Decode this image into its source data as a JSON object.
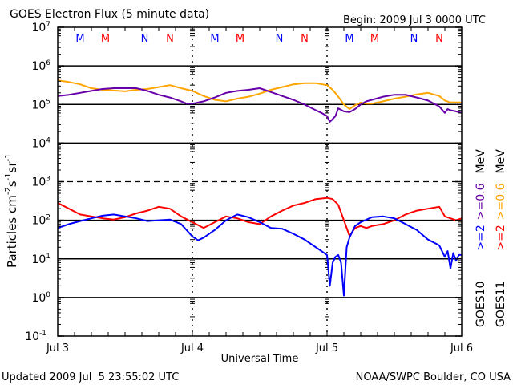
{
  "chart_data": {
    "type": "line",
    "title": "GOES Electron Flux (5 minute data)",
    "begin_label": "Begin: 2009 Jul 3 0000 UTC",
    "xlabel": "Universal Time",
    "ylabel": "Particles cm",
    "ylabel_parts": [
      "Particles cm",
      "-2",
      "s",
      "-1",
      "sr",
      "-1"
    ],
    "yscale": "log",
    "ylim_exp": [
      -1,
      7
    ],
    "xlim_hours": [
      0,
      72
    ],
    "y_ticks": [
      {
        "exp": 7,
        "label": "10",
        "sup": "7"
      },
      {
        "exp": 6,
        "label": "10",
        "sup": "6"
      },
      {
        "exp": 5,
        "label": "10",
        "sup": "5"
      },
      {
        "exp": 4,
        "label": "10",
        "sup": "4"
      },
      {
        "exp": 3,
        "label": "10",
        "sup": "3"
      },
      {
        "exp": 2,
        "label": "10",
        "sup": "2"
      },
      {
        "exp": 1,
        "label": "10",
        "sup": "1"
      },
      {
        "exp": 0,
        "label": "10",
        "sup": "0"
      },
      {
        "exp": -1,
        "label": "10",
        "sup": "-1"
      }
    ],
    "x_ticks": [
      {
        "hour": 0,
        "label": "Jul 3"
      },
      {
        "hour": 24,
        "label": "Jul 4"
      },
      {
        "hour": 48,
        "label": "Jul 5"
      },
      {
        "hour": 72,
        "label": "Jul 6"
      }
    ],
    "grid_solid_exp": [
      6,
      5,
      4,
      2,
      1,
      0
    ],
    "grid_dashed_exp": [
      3
    ],
    "day_markers": [
      24,
      48
    ],
    "mn_markers": [
      {
        "hour": 4.0,
        "label": "M",
        "color": "#0000ff"
      },
      {
        "hour": 8.5,
        "label": "M",
        "color": "#ff0000"
      },
      {
        "hour": 15.5,
        "label": "N",
        "color": "#0000ff"
      },
      {
        "hour": 20.0,
        "label": "N",
        "color": "#ff0000"
      },
      {
        "hour": 28.0,
        "label": "M",
        "color": "#0000ff"
      },
      {
        "hour": 32.5,
        "label": "M",
        "color": "#ff0000"
      },
      {
        "hour": 39.5,
        "label": "N",
        "color": "#0000ff"
      },
      {
        "hour": 44.0,
        "label": "N",
        "color": "#ff0000"
      },
      {
        "hour": 52.0,
        "label": "M",
        "color": "#0000ff"
      },
      {
        "hour": 56.5,
        "label": "M",
        "color": "#ff0000"
      },
      {
        "hour": 63.5,
        "label": "N",
        "color": "#0000ff"
      },
      {
        "hour": 68.0,
        "label": "N",
        "color": "#ff0000"
      }
    ],
    "legend": {
      "placement": "right",
      "columns": [
        {
          "satellite": "GOES10",
          "entries": [
            {
              "label": ">=2",
              "color": "#0000ff"
            },
            {
              "label": ">=0.6",
              "color": "#6600aa"
            },
            {
              "label": "MeV",
              "color": "#000000"
            }
          ]
        },
        {
          "satellite": "GOES11",
          "entries": [
            {
              "label": ">=2",
              "color": "#ff0000"
            },
            {
              "label": ">=0.6",
              "color": "#ffa500"
            },
            {
              "label": "MeV",
              "color": "#000000"
            }
          ]
        }
      ]
    },
    "series": [
      {
        "name": "GOES11 >=0.6 MeV",
        "color": "#ffa500",
        "x": [
          0,
          2,
          4,
          6,
          8,
          10,
          12,
          14,
          16,
          18,
          20,
          22,
          24,
          26,
          28,
          30,
          32,
          34,
          36,
          38,
          40,
          42,
          44,
          46,
          48,
          49,
          50,
          51,
          52,
          53,
          54,
          55,
          56,
          58,
          60,
          62,
          64,
          66,
          68,
          69,
          70,
          71,
          72
        ],
        "y_exp": [
          5.62,
          5.58,
          5.52,
          5.42,
          5.38,
          5.36,
          5.34,
          5.38,
          5.4,
          5.45,
          5.5,
          5.42,
          5.35,
          5.22,
          5.12,
          5.08,
          5.15,
          5.2,
          5.28,
          5.38,
          5.45,
          5.52,
          5.55,
          5.55,
          5.5,
          5.38,
          5.2,
          5.0,
          4.88,
          4.98,
          5.05,
          5.02,
          5.02,
          5.08,
          5.15,
          5.2,
          5.26,
          5.3,
          5.22,
          5.1,
          5.05,
          5.05,
          5.05
        ]
      },
      {
        "name": "GOES10 >=0.6 MeV",
        "color": "#6600aa",
        "x": [
          0,
          2,
          4,
          6,
          8,
          10,
          12,
          14,
          16,
          18,
          20,
          22,
          23,
          24,
          26,
          28,
          30,
          32,
          34,
          36,
          38,
          40,
          42,
          44,
          46,
          47,
          48,
          48.5,
          49,
          49.5,
          50,
          51,
          52,
          53,
          54,
          55,
          56,
          58,
          60,
          62,
          64,
          66,
          68,
          69,
          69.5,
          70,
          71,
          72
        ],
        "y_exp": [
          5.22,
          5.25,
          5.3,
          5.35,
          5.4,
          5.42,
          5.42,
          5.42,
          5.35,
          5.25,
          5.18,
          5.08,
          5.02,
          5.02,
          5.08,
          5.18,
          5.3,
          5.35,
          5.38,
          5.42,
          5.32,
          5.22,
          5.12,
          5.0,
          4.85,
          4.78,
          4.7,
          4.55,
          4.62,
          4.7,
          4.9,
          4.82,
          4.8,
          4.88,
          5.0,
          5.08,
          5.12,
          5.2,
          5.25,
          5.25,
          5.18,
          5.1,
          4.95,
          4.78,
          4.88,
          4.85,
          4.82,
          4.78
        ]
      },
      {
        "name": "GOES11 >=2 MeV",
        "color": "#ff0000",
        "x": [
          0,
          2,
          4,
          6,
          8,
          10,
          12,
          14,
          16,
          18,
          20,
          22,
          24,
          26,
          28,
          30,
          32,
          34,
          36,
          38,
          40,
          42,
          44,
          46,
          48,
          49,
          50,
          51,
          52,
          53,
          54,
          55,
          56,
          58,
          60,
          62,
          64,
          66,
          68,
          69,
          70,
          71,
          72
        ],
        "y_exp": [
          2.45,
          2.3,
          2.15,
          2.1,
          2.05,
          2.02,
          2.08,
          2.18,
          2.25,
          2.35,
          2.3,
          2.1,
          1.95,
          1.8,
          1.95,
          2.1,
          2.05,
          1.95,
          1.9,
          2.1,
          2.25,
          2.38,
          2.45,
          2.55,
          2.58,
          2.55,
          2.4,
          2.0,
          1.6,
          1.8,
          1.85,
          1.8,
          1.85,
          1.9,
          2.0,
          2.15,
          2.25,
          2.3,
          2.35,
          2.1,
          2.05,
          2.0,
          2.05
        ]
      },
      {
        "name": "GOES10 >=2 MeV",
        "color": "#0000ff",
        "x": [
          0,
          2,
          4,
          6,
          8,
          10,
          12,
          14,
          16,
          18,
          20,
          22,
          24,
          25,
          26,
          28,
          30,
          32,
          34,
          36,
          38,
          40,
          42,
          44,
          46,
          47,
          48,
          48.5,
          49,
          49.5,
          50,
          50.5,
          51,
          51.5,
          52,
          53,
          54,
          56,
          58,
          60,
          62,
          64,
          66,
          68,
          69,
          69.5,
          70,
          70.5,
          71,
          71.5,
          72
        ],
        "y_exp": [
          1.8,
          1.9,
          1.98,
          2.05,
          2.12,
          2.15,
          2.1,
          2.05,
          1.98,
          2.0,
          2.02,
          1.9,
          1.58,
          1.48,
          1.55,
          1.75,
          2.0,
          2.15,
          2.08,
          1.95,
          1.8,
          1.78,
          1.65,
          1.5,
          1.3,
          1.2,
          1.1,
          0.3,
          0.9,
          1.05,
          1.1,
          0.9,
          0.05,
          1.3,
          1.55,
          1.85,
          1.95,
          2.08,
          2.1,
          2.05,
          1.9,
          1.75,
          1.5,
          1.35,
          1.05,
          1.2,
          0.75,
          1.15,
          0.95,
          1.1,
          1.1
        ]
      }
    ]
  },
  "footer": {
    "updated": "Updated 2009 Jul  5 23:55:02 UTC",
    "credit": "NOAA/SWPC Boulder, CO USA"
  }
}
